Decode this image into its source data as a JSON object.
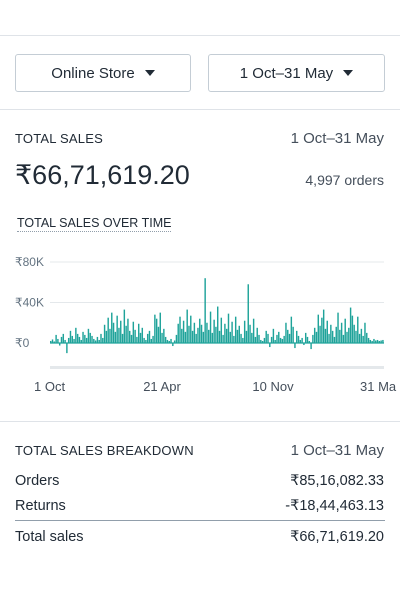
{
  "filters": {
    "store": "Online Store",
    "date_range": "1 Oct–31 May"
  },
  "summary": {
    "label": "TOTAL SALES",
    "date_range": "1 Oct–31 May",
    "total": "₹66,71,619.20",
    "orders": "4,997 orders"
  },
  "chart_data": {
    "type": "bar",
    "title": "TOTAL SALES OVER TIME",
    "xlabel": "",
    "ylabel": "",
    "y_ticks": [
      "₹80K",
      "₹40K",
      "₹0"
    ],
    "y_tick_values": [
      80000,
      40000,
      0
    ],
    "ylim": [
      -18000,
      88000
    ],
    "x_ticks": [
      "1 Oct",
      "21 Apr",
      "10 Nov",
      "31 Ma"
    ],
    "x_tick_positions": [
      0,
      0.335,
      0.665,
      1.0
    ],
    "grid": true,
    "color": "#1fa39a",
    "series": [
      {
        "values": [
          2000,
          3500,
          1500,
          8000,
          4000,
          -2500,
          6000,
          9000,
          3000,
          -10000,
          5000,
          12000,
          7000,
          4000,
          15000,
          9000,
          6000,
          3000,
          11000,
          8000,
          5000,
          14000,
          10000,
          7000,
          4000,
          2500,
          6000,
          3000,
          9000,
          5000,
          18000,
          12000,
          25000,
          14000,
          30000,
          20000,
          11000,
          27000,
          15000,
          22000,
          9000,
          33000,
          17000,
          24000,
          12000,
          8000,
          21000,
          13000,
          6000,
          19000,
          10000,
          15000,
          5000,
          3000,
          9000,
          12000,
          4000,
          7000,
          28000,
          24000,
          16000,
          30000,
          10000,
          14000,
          6000,
          3000,
          2000,
          4000,
          -3000,
          2500,
          8000,
          19000,
          26000,
          14000,
          22000,
          11000,
          33000,
          17000,
          27000,
          12000,
          20000,
          9000,
          15000,
          24000,
          18000,
          11000,
          64000,
          20000,
          13000,
          31000,
          10000,
          23000,
          16000,
          36000,
          12000,
          25000,
          8000,
          19000,
          14000,
          29000,
          11000,
          21000,
          7000,
          26000,
          13000,
          17000,
          9000,
          5000,
          22000,
          12000,
          58000,
          18000,
          10000,
          24000,
          6000,
          15000,
          8000,
          3000,
          2000,
          5000,
          12000,
          9000,
          -4000,
          6000,
          14000,
          3000,
          8000,
          11000,
          5000,
          4000,
          7000,
          20000,
          13000,
          9000,
          26000,
          16000,
          -5000,
          12000,
          7000,
          3000,
          5000,
          -2000,
          10000,
          6000,
          2000,
          -6000,
          8000,
          15000,
          11000,
          28000,
          17000,
          25000,
          33000,
          14000,
          22000,
          9000,
          18000,
          12000,
          6000,
          16000,
          30000,
          13000,
          20000,
          8000,
          24000,
          11000,
          15000,
          35000,
          27000,
          18000,
          12000,
          26000,
          9000,
          14000,
          7000,
          20000,
          10000,
          5000,
          3000,
          2000,
          4000,
          2500,
          3000,
          2000,
          2500,
          3000
        ]
      }
    ]
  },
  "breakdown": {
    "label": "TOTAL SALES BREAKDOWN",
    "date_range": "1 Oct–31 May",
    "rows": [
      {
        "label": "Orders",
        "value": "₹85,16,082.33"
      },
      {
        "label": "Returns",
        "value": "-₹18,44,463.13"
      }
    ],
    "total": {
      "label": "Total sales",
      "value": "₹66,71,619.20"
    }
  }
}
